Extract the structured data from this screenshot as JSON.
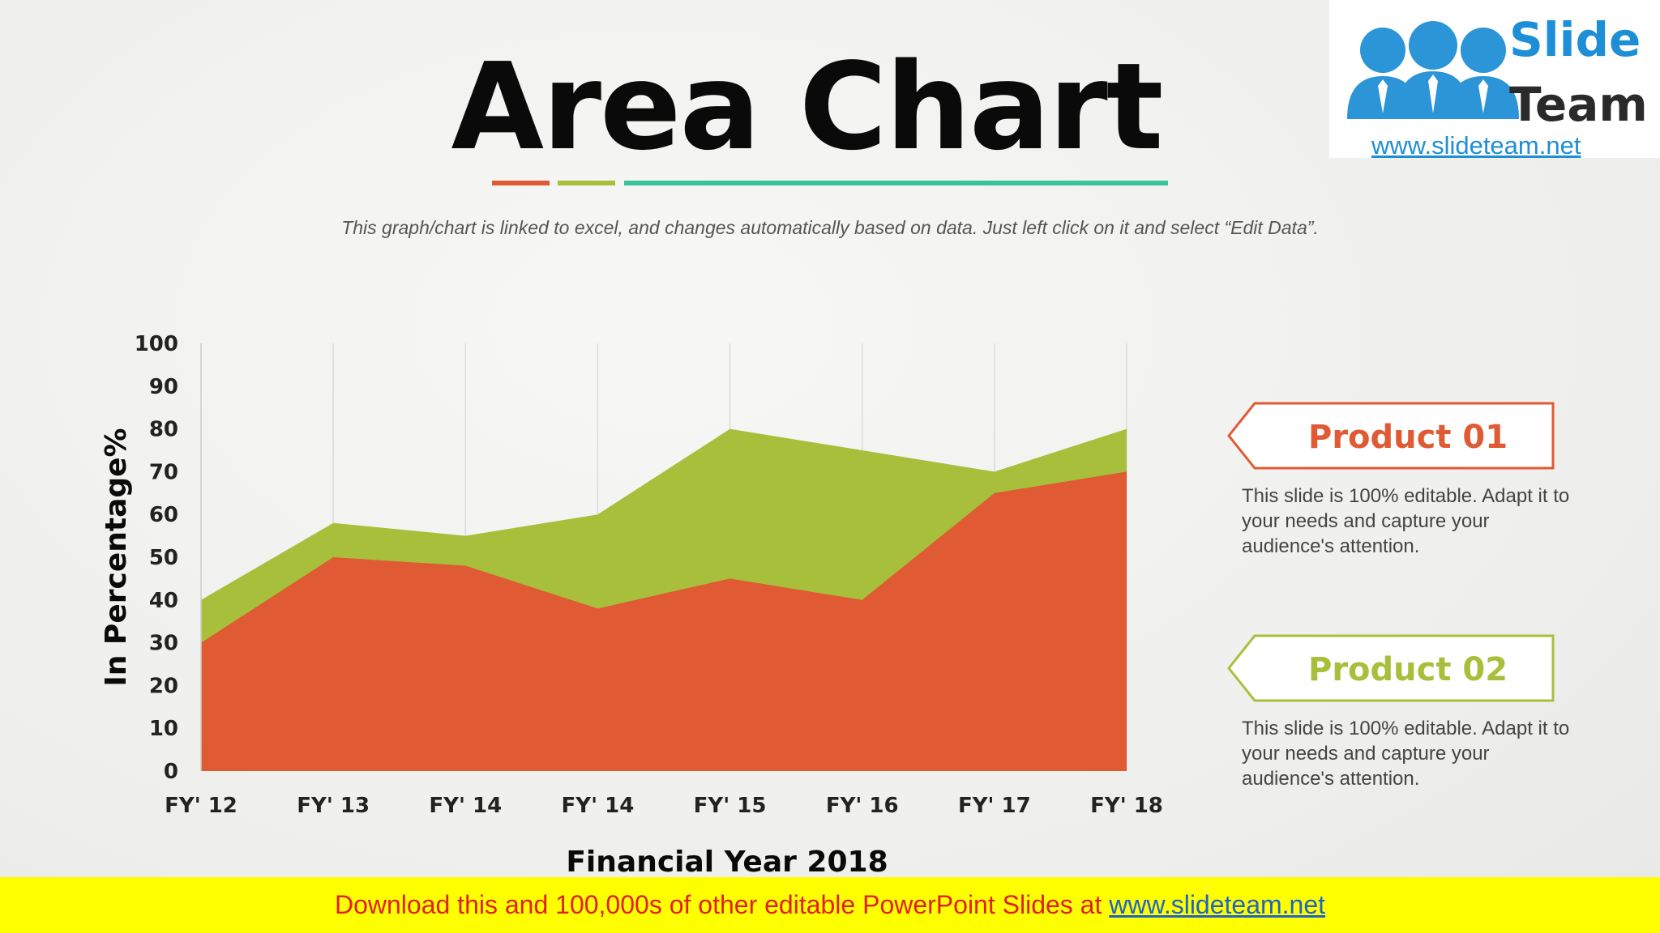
{
  "slide": {
    "title": "Area Chart",
    "subtitle": "This graph/chart is linked to excel, and changes automatically based on data. Just left click on it and select “Edit Data”.",
    "accent_colors": [
      "#e05a33",
      "#a8bf3c",
      "#3cc29a"
    ]
  },
  "logo": {
    "line1": "Slide",
    "line2": "Team",
    "url": "www.slideteam.net"
  },
  "chart_data": {
    "type": "area",
    "categories": [
      "FY' 12",
      "FY' 13",
      "FY' 14",
      "FY' 14",
      "FY' 15",
      "FY' 16",
      "FY' 17",
      "FY' 18"
    ],
    "series": [
      {
        "name": "Product 01",
        "values": [
          30,
          50,
          48,
          38,
          45,
          40,
          65,
          70
        ],
        "color": "#e05a33"
      },
      {
        "name": "Product 02",
        "values": [
          40,
          58,
          55,
          60,
          80,
          75,
          70,
          80
        ],
        "color": "#a8bf3c"
      }
    ],
    "y_ticks": [
      0,
      10,
      20,
      30,
      40,
      50,
      60,
      70,
      80,
      90,
      100
    ],
    "ylim": [
      0,
      100
    ],
    "xlabel": "Financial Year 2018",
    "ylabel": "In Percentage%",
    "grid": "vertical",
    "legend_position": "right"
  },
  "legend": [
    {
      "label": "Product 01",
      "color": "#e05a33",
      "description": "This slide is 100% editable. Adapt it to your needs and capture your audience's attention."
    },
    {
      "label": "Product 02",
      "color": "#a8bf3c",
      "description": "This slide is 100% editable. Adapt it to your needs and capture your audience's attention."
    }
  ],
  "footer": {
    "text": "Download this and 100,000s of other editable PowerPoint Slides at ",
    "link": "www.slideteam.net"
  }
}
